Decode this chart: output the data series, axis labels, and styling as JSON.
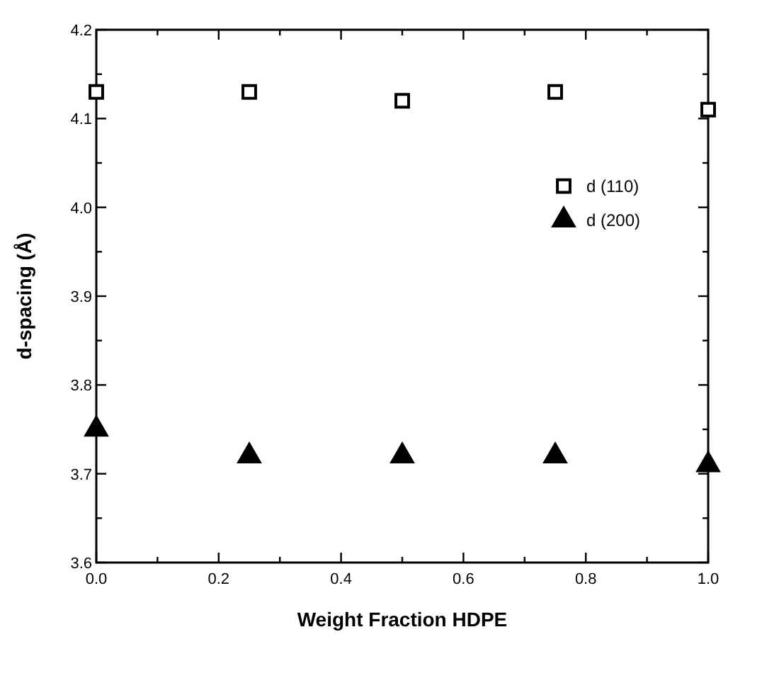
{
  "chart_data": {
    "type": "scatter",
    "xlabel": "Weight Fraction HDPE",
    "ylabel": "d-spacing  (Å)",
    "x": [
      0,
      0.25,
      0.5,
      0.75,
      1.0
    ],
    "series": [
      {
        "name": "d (110)",
        "color": "#000000",
        "marker": "square",
        "values": [
          4.13,
          4.13,
          4.12,
          4.13,
          4.11
        ]
      },
      {
        "name": "d (200)",
        "color": "#000000",
        "marker": "triangle",
        "values": [
          3.75,
          3.72,
          3.72,
          3.72,
          3.71
        ]
      }
    ],
    "xlim": [
      0,
      1
    ],
    "ylim": [
      3.6,
      4.2
    ],
    "xticks": [
      {
        "value": 0,
        "label": "0.0"
      },
      {
        "value": 0.1,
        "label": null
      },
      {
        "value": 0.2,
        "label": "0.2"
      },
      {
        "value": 0.3,
        "label": null
      },
      {
        "value": 0.4,
        "label": "0.4"
      },
      {
        "value": 0.5,
        "label": null
      },
      {
        "value": 0.6,
        "label": "0.6"
      },
      {
        "value": 0.7,
        "label": null
      },
      {
        "value": 0.8,
        "label": "0.8"
      },
      {
        "value": 0.9,
        "label": null
      },
      {
        "value": 1,
        "label": "1.0"
      }
    ],
    "yticks": [
      {
        "value": 3.6,
        "label": "3.6"
      },
      {
        "value": 3.65,
        "label": null
      },
      {
        "value": 3.7,
        "label": "3.7"
      },
      {
        "value": 3.75,
        "label": null
      },
      {
        "value": 3.8,
        "label": "3.8"
      },
      {
        "value": 3.85,
        "label": null
      },
      {
        "value": 3.9,
        "label": "3.9"
      },
      {
        "value": 3.95,
        "label": null
      },
      {
        "value": 4.0,
        "label": "4.0"
      },
      {
        "value": 4.05,
        "label": null
      },
      {
        "value": 4.1,
        "label": "4.1"
      },
      {
        "value": 4.15,
        "label": null
      },
      {
        "value": 4.2,
        "label": "4.2"
      }
    ],
    "legend": "right",
    "grid": false
  }
}
